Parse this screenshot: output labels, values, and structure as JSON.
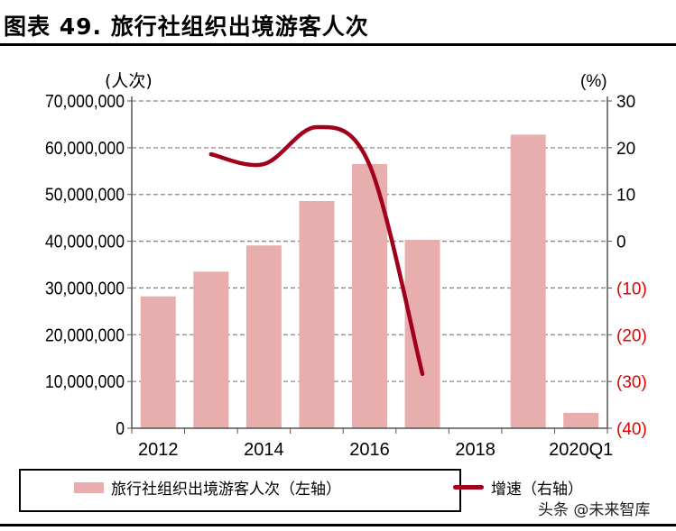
{
  "title": "图表 49. 旅行社组织出境游客人次",
  "watermark": "头条 @未来智库",
  "chart_data": {
    "type": "bar+line",
    "categories": [
      "2012",
      "2013",
      "2014",
      "2015",
      "2016",
      "2017",
      "2018",
      "2019",
      "2020Q1"
    ],
    "x_tick_labels": [
      "2012",
      "2014",
      "2016",
      "2018",
      "2020Q1"
    ],
    "left_unit": "(人次)",
    "right_unit": "(%)",
    "left_ylim": [
      0,
      70000000
    ],
    "right_ylim": [
      -40,
      30
    ],
    "left_ticks": [
      "0",
      "10,000,000",
      "20,000,000",
      "30,000,000",
      "40,000,000",
      "50,000,000",
      "60,000,000",
      "70,000,000"
    ],
    "right_ticks": [
      "(40)",
      "(30)",
      "(20)",
      "(10)",
      "0",
      "10",
      "20",
      "30"
    ],
    "grid": true,
    "legend_placement": "bottom",
    "series": [
      {
        "name": "旅行社组织出境游客人次（左轴）",
        "type": "bar",
        "axis": "left",
        "color": "#e8aeae",
        "values": [
          28200000,
          33500000,
          39100000,
          48600000,
          56500000,
          40300000,
          null,
          62800000,
          3300000
        ]
      },
      {
        "name": "增速（右轴）",
        "type": "line",
        "axis": "right",
        "color": "#a0001c",
        "values": [
          null,
          18.6,
          16.5,
          24.4,
          16.3,
          -28.4,
          null,
          null,
          null
        ]
      }
    ],
    "negative_tick_color": "#e00000"
  }
}
